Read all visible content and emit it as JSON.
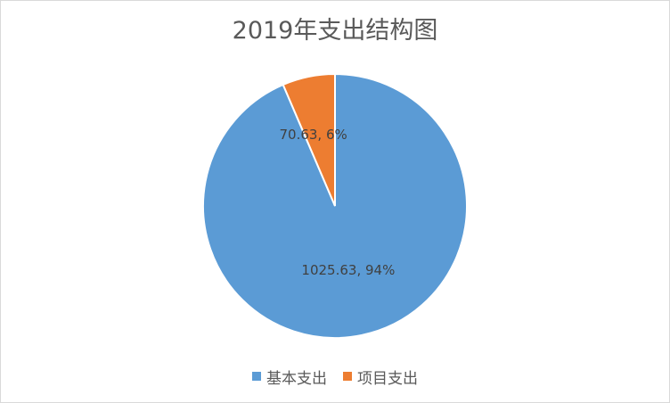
{
  "chart_data": {
    "type": "pie",
    "title": "2019年支出结构图",
    "categories": [
      "基本支出",
      "项目支出"
    ],
    "values": [
      1025.63,
      70.63
    ],
    "percentages": [
      94,
      6
    ],
    "data_labels": [
      "1025.63, 94%",
      "70.63, 6%"
    ],
    "colors": [
      "#5b9bd5",
      "#ed7d31"
    ],
    "legend_position": "bottom",
    "start_angle": "top, clockwise"
  }
}
